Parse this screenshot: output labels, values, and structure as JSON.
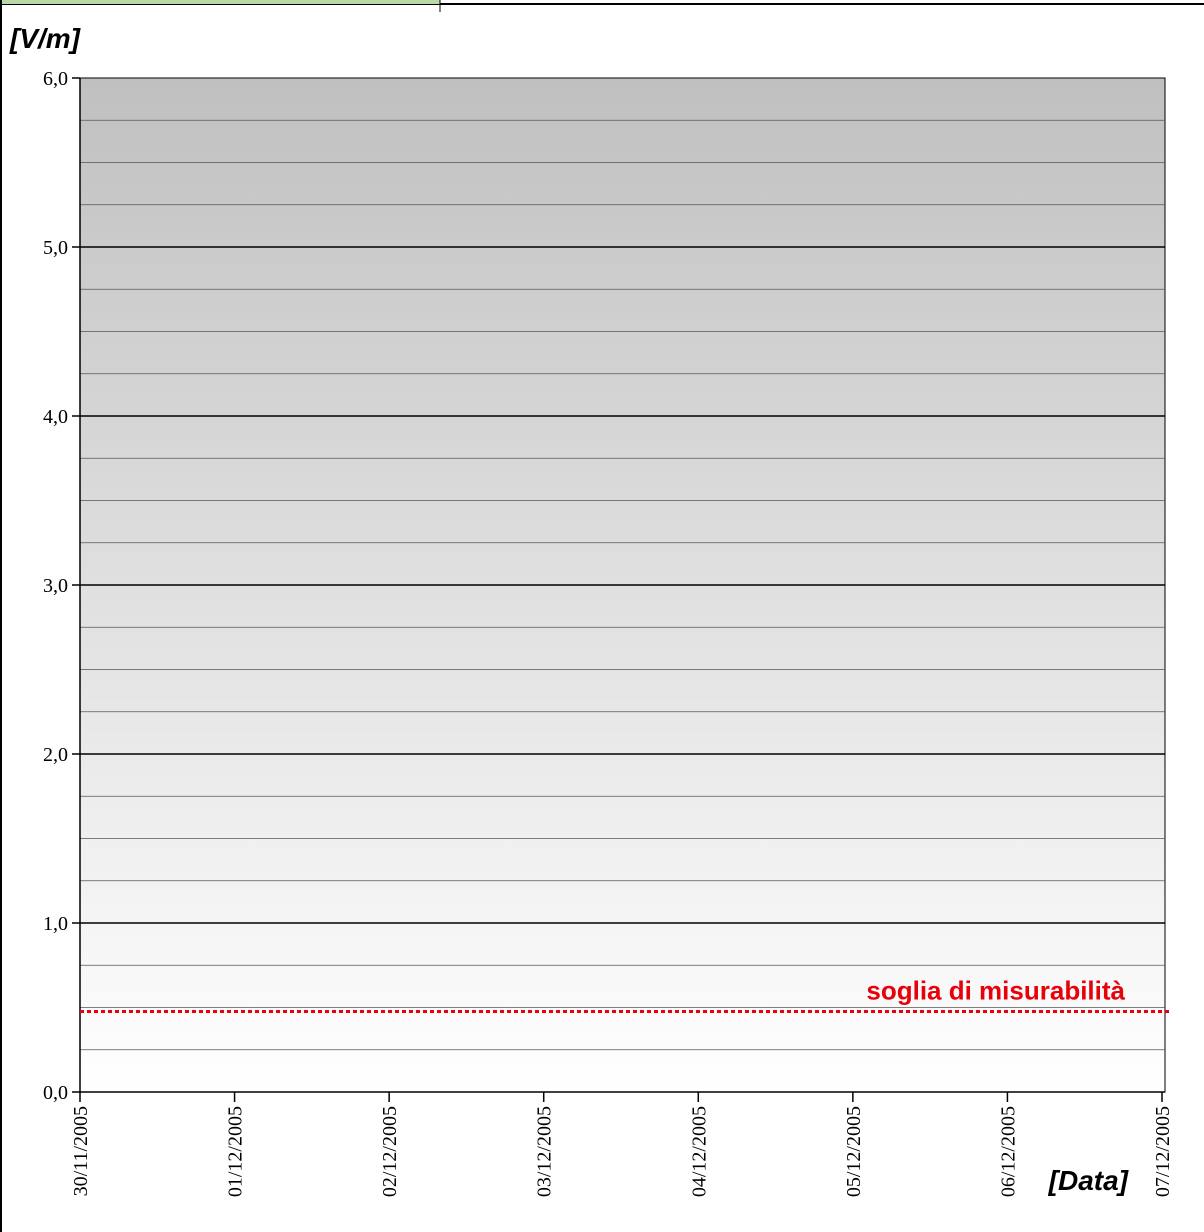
{
  "chart_data": {
    "type": "line",
    "title": "",
    "ylabel": "[V/m]",
    "xlabel": "[Data]",
    "ylim": [
      0,
      6
    ],
    "y_ticks": [
      "0,0",
      "1,0",
      "2,0",
      "3,0",
      "4,0",
      "5,0",
      "6,0"
    ],
    "y_tick_values": [
      0,
      1,
      2,
      3,
      4,
      5,
      6
    ],
    "y_minor_step": 0.25,
    "x_ticks": [
      "30/11/2005",
      "01/12/2005",
      "02/12/2005",
      "03/12/2005",
      "04/12/2005",
      "05/12/2005",
      "06/12/2005",
      "07/12/2005"
    ],
    "grid": true,
    "series": [],
    "threshold": {
      "label": "soglia di misurabilità",
      "value": 0.5,
      "color": "#e8000b"
    },
    "colors": {
      "plot_bg_top": "#c0c0c0",
      "plot_bg_bottom": "#ffffff",
      "corner_tab": "#b8d8a8"
    }
  }
}
